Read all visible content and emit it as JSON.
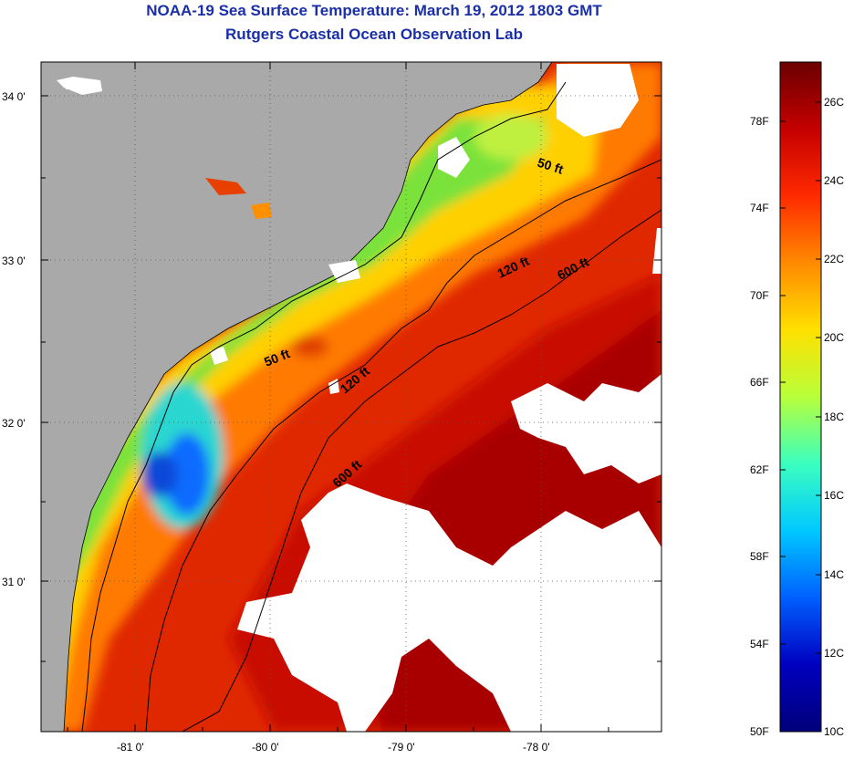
{
  "title": {
    "line1": "NOAA-19 Sea Surface Temperature:  March 19, 2012 1803 GMT",
    "line2": "Rutgers Coastal Ocean Observation Lab"
  },
  "axes": {
    "lat_ticks": [
      "34 0'",
      "33 0'",
      "32 0'",
      "31 0'"
    ],
    "lon_ticks": [
      "-81 0'",
      "-80 0'",
      "-79 0'",
      "-78 0'"
    ]
  },
  "contours": {
    "c50a": "50 ft",
    "c50b": "50 ft",
    "c120a": "120 ft",
    "c120b": "120 ft",
    "c600a": "600 ft",
    "c600b": "600 ft"
  },
  "colorbar": {
    "f_labels": [
      "78F",
      "74F",
      "70F",
      "66F",
      "62F",
      "58F",
      "54F",
      "50F"
    ],
    "c_labels": [
      "26C",
      "24C",
      "22C",
      "20C",
      "18C",
      "16C",
      "14C",
      "12C",
      "10C"
    ],
    "colors": [
      "#6b0000",
      "#c40000",
      "#ff2a00",
      "#ff8a00",
      "#ffe000",
      "#b8ff3a",
      "#3affc0",
      "#00c8ff",
      "#0060ff",
      "#0000c0",
      "#00007a"
    ]
  },
  "colors": {
    "land": "#a9a9a9",
    "cloud": "#ffffff",
    "title": "#1a2fa8"
  }
}
